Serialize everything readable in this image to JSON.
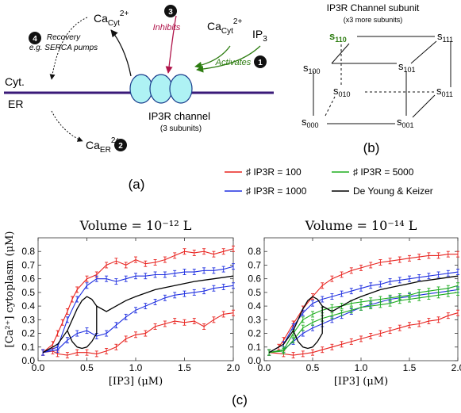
{
  "panel_a": {
    "label": "(a)",
    "compartments": {
      "cyt": "Cyt.",
      "er": "ER"
    },
    "ca_cyt_left": {
      "base": "Ca",
      "sub": "Cyt",
      "sup": "2+"
    },
    "ca_cyt_right": {
      "base": "Ca",
      "sub": "Cyt",
      "sup": "2+"
    },
    "ip3": {
      "base": "IP",
      "sub": "3"
    },
    "ca_er": {
      "base": "Ca",
      "sub": "ER",
      "sup": "2+"
    },
    "channel_title": "IP3R channel",
    "channel_subtitle": "(3 subunits)",
    "steps": [
      {
        "num": "1",
        "label": "Activates"
      },
      {
        "num": "2",
        "label": ""
      },
      {
        "num": "3",
        "label": "Inhibits"
      },
      {
        "num": "4",
        "label": "Recovery"
      }
    ],
    "recovery_note": "e.g. SERCA pumps",
    "colors": {
      "membrane": "#3a1a78",
      "channel": "#aef2f4",
      "activate": "#2e7d12",
      "inhibit": "#b0144a"
    }
  },
  "panel_b": {
    "label": "(b)",
    "title": "IP3R Channel subunit",
    "subtitle": "(x3 more subunits)",
    "state_prefix": "s",
    "states": [
      "110",
      "111",
      "100",
      "101",
      "010",
      "011",
      "000",
      "001"
    ],
    "highlight_state": "110",
    "highlight_color": "#2e7d12"
  },
  "legend": {
    "items": [
      {
        "label": "♯ IP3R = 100",
        "color": "#e8231f"
      },
      {
        "label": "♯ IP3R = 5000",
        "color": "#1fae1f"
      },
      {
        "label": "♯ IP3R = 1000",
        "color": "#1f2fe0"
      },
      {
        "label": "De Young & Keizer",
        "color": "#000000"
      }
    ]
  },
  "panel_c": {
    "label": "(c)",
    "ylabel": "[Ca²⁺] cytoplasm (μM)",
    "xlabel": "[IP3] (μM)"
  },
  "chart_data": [
    {
      "type": "line",
      "title": "Volume = 10⁻¹² L",
      "xlabel": "[IP3] (μM)",
      "ylabel": "[Ca²⁺] cytoplasm (μM)",
      "xlim": [
        0,
        2.0
      ],
      "ylim": [
        0,
        0.9
      ],
      "xticks": [
        "0.0",
        "0.5",
        "1.0",
        "1.5",
        "2.0"
      ],
      "yticks": [
        "0.0",
        "0.1",
        "0.2",
        "0.3",
        "0.4",
        "0.5",
        "0.6",
        "0.7",
        "0.8"
      ],
      "series": [
        {
          "name": "♯ IP3R = 100 (upper)",
          "color": "#e8231f",
          "errorbars": true,
          "x": [
            0.05,
            0.15,
            0.2,
            0.25,
            0.3,
            0.35,
            0.4,
            0.5,
            0.6,
            0.7,
            0.8,
            0.9,
            1.0,
            1.1,
            1.2,
            1.3,
            1.4,
            1.5,
            1.6,
            1.7,
            1.8,
            1.9,
            2.0
          ],
          "y": [
            0.06,
            0.12,
            0.2,
            0.28,
            0.36,
            0.45,
            0.52,
            0.6,
            0.63,
            0.7,
            0.73,
            0.7,
            0.74,
            0.71,
            0.72,
            0.74,
            0.77,
            0.8,
            0.79,
            0.8,
            0.78,
            0.8,
            0.82
          ]
        },
        {
          "name": "♯ IP3R = 100 (lower)",
          "color": "#e8231f",
          "errorbars": true,
          "x": [
            0.05,
            0.15,
            0.2,
            0.3,
            0.4,
            0.5,
            0.6,
            0.7,
            0.8,
            0.9,
            1.0,
            1.1,
            1.2,
            1.3,
            1.4,
            1.5,
            1.6,
            1.7,
            1.8,
            1.9,
            2.0
          ],
          "y": [
            0.06,
            0.07,
            0.05,
            0.04,
            0.06,
            0.06,
            0.05,
            0.07,
            0.1,
            0.16,
            0.19,
            0.2,
            0.25,
            0.27,
            0.29,
            0.28,
            0.29,
            0.25,
            0.3,
            0.34,
            0.35
          ]
        },
        {
          "name": "♯ IP3R = 1000 (upper)",
          "color": "#1f2fe0",
          "errorbars": true,
          "x": [
            0.05,
            0.2,
            0.3,
            0.4,
            0.5,
            0.6,
            0.7,
            0.8,
            0.9,
            1.0,
            1.1,
            1.2,
            1.3,
            1.4,
            1.5,
            1.6,
            1.7,
            1.8,
            1.9,
            2.0
          ],
          "y": [
            0.06,
            0.1,
            0.3,
            0.45,
            0.55,
            0.6,
            0.6,
            0.58,
            0.6,
            0.62,
            0.62,
            0.63,
            0.63,
            0.64,
            0.65,
            0.65,
            0.66,
            0.66,
            0.67,
            0.69
          ]
        },
        {
          "name": "♯ IP3R = 1000 (lower)",
          "color": "#1f2fe0",
          "errorbars": true,
          "x": [
            0.05,
            0.2,
            0.3,
            0.4,
            0.5,
            0.6,
            0.7,
            0.8,
            0.9,
            1.0,
            1.1,
            1.2,
            1.3,
            1.4,
            1.5,
            1.6,
            1.7,
            1.8,
            1.9,
            2.0
          ],
          "y": [
            0.06,
            0.08,
            0.15,
            0.2,
            0.22,
            0.18,
            0.2,
            0.26,
            0.32,
            0.37,
            0.4,
            0.43,
            0.46,
            0.48,
            0.49,
            0.5,
            0.51,
            0.53,
            0.54,
            0.55
          ]
        },
        {
          "name": "De Young & Keizer (upper)",
          "color": "#000000",
          "errorbars": false,
          "x": [
            0.05,
            0.2,
            0.3,
            0.4,
            0.45,
            0.5,
            0.55,
            0.6,
            0.7,
            0.8,
            0.9,
            1.0,
            1.2,
            1.4,
            1.6,
            1.8,
            2.0
          ],
          "y": [
            0.06,
            0.12,
            0.22,
            0.38,
            0.44,
            0.47,
            0.45,
            0.4,
            0.36,
            0.4,
            0.44,
            0.47,
            0.52,
            0.55,
            0.58,
            0.6,
            0.62
          ]
        },
        {
          "name": "De Young & Keizer (lower)",
          "color": "#000000",
          "errorbars": false,
          "x": [
            0.3,
            0.35,
            0.4,
            0.45,
            0.5,
            0.55,
            0.6,
            0.6
          ],
          "y": [
            0.22,
            0.14,
            0.1,
            0.09,
            0.1,
            0.14,
            0.2,
            0.4
          ]
        }
      ]
    },
    {
      "type": "line",
      "title": "Volume = 10⁻¹⁴ L",
      "xlabel": "[IP3] (μM)",
      "xlim": [
        0,
        2.0
      ],
      "ylim": [
        0,
        0.9
      ],
      "xticks": [
        "0.0",
        "0.5",
        "1.0",
        "1.5",
        "2.0"
      ],
      "yticks": [
        "0.0",
        "0.1",
        "0.2",
        "0.3",
        "0.4",
        "0.5",
        "0.6",
        "0.7",
        "0.8"
      ],
      "series": [
        {
          "name": "♯ IP3R = 100 (upper)",
          "color": "#e8231f",
          "errorbars": true,
          "x": [
            0.05,
            0.15,
            0.2,
            0.3,
            0.4,
            0.5,
            0.6,
            0.7,
            0.8,
            0.9,
            1.0,
            1.1,
            1.2,
            1.3,
            1.4,
            1.5,
            1.6,
            1.7,
            1.8,
            1.9,
            2.0
          ],
          "y": [
            0.06,
            0.1,
            0.15,
            0.27,
            0.38,
            0.47,
            0.55,
            0.6,
            0.63,
            0.66,
            0.68,
            0.7,
            0.72,
            0.73,
            0.74,
            0.75,
            0.76,
            0.77,
            0.77,
            0.78,
            0.78
          ]
        },
        {
          "name": "♯ IP3R = 100 (lower)",
          "color": "#e8231f",
          "errorbars": true,
          "x": [
            0.05,
            0.2,
            0.3,
            0.4,
            0.5,
            0.6,
            0.7,
            0.8,
            0.9,
            1.0,
            1.1,
            1.2,
            1.3,
            1.4,
            1.5,
            1.6,
            1.7,
            1.8,
            1.9,
            2.0
          ],
          "y": [
            0.06,
            0.05,
            0.04,
            0.05,
            0.06,
            0.08,
            0.1,
            0.12,
            0.14,
            0.16,
            0.18,
            0.2,
            0.22,
            0.24,
            0.26,
            0.27,
            0.29,
            0.3,
            0.33,
            0.35
          ]
        },
        {
          "name": "♯ IP3R = 1000 (upper)",
          "color": "#1f2fe0",
          "errorbars": true,
          "x": [
            0.05,
            0.2,
            0.3,
            0.4,
            0.5,
            0.6,
            0.7,
            0.8,
            0.9,
            1.0,
            1.1,
            1.2,
            1.3,
            1.4,
            1.5,
            1.6,
            1.7,
            1.8,
            1.9,
            2.0
          ],
          "y": [
            0.06,
            0.12,
            0.25,
            0.35,
            0.42,
            0.45,
            0.47,
            0.49,
            0.51,
            0.53,
            0.55,
            0.56,
            0.58,
            0.59,
            0.6,
            0.61,
            0.62,
            0.63,
            0.64,
            0.65
          ]
        },
        {
          "name": "♯ IP3R = 1000 (lower)",
          "color": "#1f2fe0",
          "errorbars": true,
          "x": [
            0.05,
            0.2,
            0.3,
            0.4,
            0.5,
            0.6,
            0.7,
            0.8,
            0.9,
            1.0,
            1.1,
            1.2,
            1.3,
            1.4,
            1.5,
            1.6,
            1.7,
            1.8,
            1.9,
            2.0
          ],
          "y": [
            0.06,
            0.08,
            0.14,
            0.2,
            0.24,
            0.27,
            0.3,
            0.33,
            0.36,
            0.39,
            0.41,
            0.43,
            0.45,
            0.46,
            0.47,
            0.48,
            0.49,
            0.5,
            0.51,
            0.52
          ]
        },
        {
          "name": "♯ IP3R = 5000 (upper)",
          "color": "#1fae1f",
          "errorbars": true,
          "x": [
            0.05,
            0.2,
            0.3,
            0.4,
            0.5,
            0.6,
            0.7,
            0.8,
            0.9,
            1.0,
            1.1,
            1.2,
            1.3,
            1.4,
            1.5,
            1.6,
            1.7,
            1.8,
            1.9,
            2.0
          ],
          "y": [
            0.06,
            0.08,
            0.2,
            0.3,
            0.34,
            0.37,
            0.39,
            0.4,
            0.42,
            0.43,
            0.44,
            0.45,
            0.46,
            0.47,
            0.48,
            0.5,
            0.51,
            0.52,
            0.53,
            0.55
          ]
        },
        {
          "name": "♯ IP3R = 5000 (lower)",
          "color": "#1fae1f",
          "errorbars": true,
          "x": [
            0.05,
            0.2,
            0.3,
            0.4,
            0.5,
            0.6,
            0.7,
            0.8,
            0.9,
            1.0,
            1.1,
            1.2,
            1.3,
            1.4,
            1.5,
            1.6,
            1.7,
            1.8,
            1.9,
            2.0
          ],
          "y": [
            0.06,
            0.07,
            0.15,
            0.24,
            0.28,
            0.31,
            0.33,
            0.35,
            0.37,
            0.39,
            0.4,
            0.41,
            0.42,
            0.44,
            0.45,
            0.46,
            0.47,
            0.48,
            0.49,
            0.5
          ]
        },
        {
          "name": "De Young & Keizer (upper)",
          "color": "#000000",
          "errorbars": false,
          "x": [
            0.05,
            0.2,
            0.3,
            0.4,
            0.45,
            0.5,
            0.55,
            0.6,
            0.7,
            0.8,
            0.9,
            1.0,
            1.2,
            1.4,
            1.6,
            1.8,
            2.0
          ],
          "y": [
            0.06,
            0.12,
            0.22,
            0.38,
            0.44,
            0.47,
            0.45,
            0.4,
            0.36,
            0.4,
            0.44,
            0.47,
            0.52,
            0.55,
            0.58,
            0.6,
            0.62
          ]
        },
        {
          "name": "De Young & Keizer (lower)",
          "color": "#000000",
          "errorbars": false,
          "x": [
            0.3,
            0.35,
            0.4,
            0.45,
            0.5,
            0.55,
            0.6,
            0.6
          ],
          "y": [
            0.22,
            0.14,
            0.1,
            0.09,
            0.1,
            0.14,
            0.2,
            0.4
          ]
        }
      ]
    }
  ]
}
